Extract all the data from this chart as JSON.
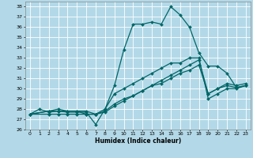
{
  "background_color": "#b3d9e8",
  "grid_color": "#ffffff",
  "line_color": "#006666",
  "xlabel": "Humidex (Indice chaleur)",
  "xlim": [
    -0.5,
    23.5
  ],
  "ylim": [
    26,
    38.5
  ],
  "yticks": [
    26,
    27,
    28,
    29,
    30,
    31,
    32,
    33,
    34,
    35,
    36,
    37,
    38
  ],
  "xticks": [
    0,
    1,
    2,
    3,
    4,
    5,
    6,
    7,
    8,
    9,
    10,
    11,
    12,
    13,
    14,
    15,
    16,
    17,
    18,
    19,
    20,
    21,
    22,
    23
  ],
  "lines": [
    {
      "x": [
        0,
        1,
        2,
        3,
        4,
        5,
        6,
        7,
        8,
        9,
        10,
        11,
        12,
        13,
        14,
        15,
        16,
        17,
        18,
        19,
        20,
        21,
        22,
        23
      ],
      "y": [
        27.5,
        28.0,
        27.7,
        27.8,
        27.7,
        27.7,
        27.7,
        26.5,
        28.0,
        30.3,
        33.8,
        36.3,
        36.3,
        36.5,
        36.3,
        38.0,
        37.2,
        36.0,
        33.5,
        32.2,
        32.2,
        31.5,
        30.1,
        30.3
      ]
    },
    {
      "x": [
        0,
        2,
        3,
        4,
        5,
        6,
        7,
        8,
        9,
        10,
        11,
        12,
        13,
        14,
        15,
        16,
        17,
        18,
        19,
        20,
        21,
        22,
        23
      ],
      "y": [
        27.5,
        27.8,
        27.8,
        27.8,
        27.8,
        27.8,
        27.5,
        28.0,
        29.5,
        30.0,
        30.5,
        31.0,
        31.5,
        32.0,
        32.5,
        32.5,
        33.0,
        33.0,
        29.0,
        29.5,
        30.0,
        30.0,
        30.3
      ]
    },
    {
      "x": [
        0,
        2,
        3,
        4,
        5,
        6,
        7,
        8,
        9,
        10,
        11,
        12,
        13,
        14,
        15,
        16,
        17,
        18,
        19,
        20,
        21,
        22,
        23
      ],
      "y": [
        27.5,
        27.8,
        28.0,
        27.8,
        27.8,
        27.5,
        27.5,
        27.8,
        28.5,
        29.0,
        29.3,
        29.8,
        30.3,
        30.5,
        31.0,
        31.5,
        31.8,
        32.3,
        29.5,
        30.0,
        30.5,
        30.3,
        30.5
      ]
    },
    {
      "x": [
        0,
        2,
        3,
        4,
        5,
        6,
        7,
        8,
        9,
        10,
        11,
        12,
        13,
        14,
        15,
        16,
        17,
        18,
        19,
        20,
        21,
        22,
        23
      ],
      "y": [
        27.5,
        27.5,
        27.5,
        27.5,
        27.5,
        27.5,
        27.5,
        27.7,
        28.3,
        28.8,
        29.3,
        29.8,
        30.3,
        30.8,
        31.3,
        31.8,
        32.3,
        32.8,
        29.5,
        30.0,
        30.3,
        30.1,
        30.3
      ]
    }
  ]
}
